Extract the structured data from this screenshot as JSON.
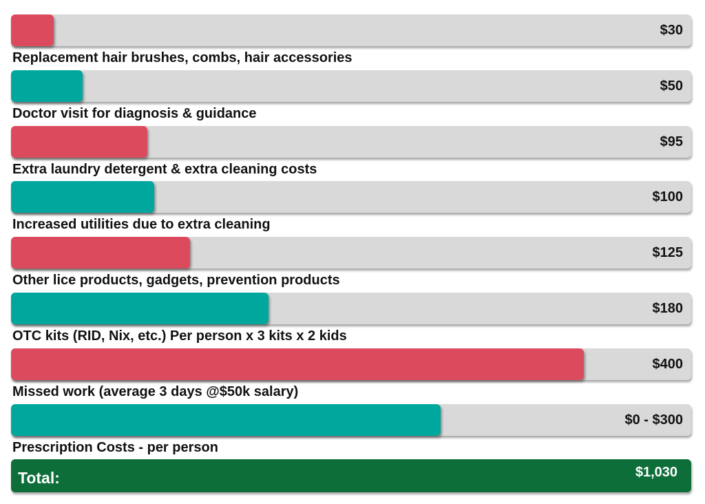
{
  "colors": {
    "track": "#d9d9d9",
    "series_a": "#dc4a5e",
    "series_b": "#00a79d",
    "total": "#0d6e3a"
  },
  "chart_data": {
    "type": "bar",
    "orientation": "horizontal",
    "items": [
      {
        "label": "Replacement hair brushes, combs, hair accessories",
        "value_text": "$30",
        "value": 30,
        "color": "#dc4a5e"
      },
      {
        "label": "Doctor visit for diagnosis & guidance",
        "value_text": "$50",
        "value": 50,
        "color": "#00a79d"
      },
      {
        "label": "Extra laundry detergent & extra cleaning costs",
        "value_text": "$95",
        "value": 95,
        "color": "#dc4a5e"
      },
      {
        "label": "Increased utilities due to extra cleaning",
        "value_text": "$100",
        "value": 100,
        "color": "#00a79d"
      },
      {
        "label": "Other lice products, gadgets, prevention products",
        "value_text": "$125",
        "value": 125,
        "color": "#dc4a5e"
      },
      {
        "label": "OTC kits (RID, Nix, etc.)  Per person x 3 kits x 2 kids",
        "value_text": "$180",
        "value": 180,
        "color": "#00a79d"
      },
      {
        "label": "Missed work (average 3 days @$50k salary)",
        "value_text": "$400",
        "value": 400,
        "color": "#dc4a5e"
      },
      {
        "label": "Prescription Costs - per person",
        "value_text": "$0 - $300",
        "value": 300,
        "color": "#00a79d"
      }
    ],
    "total": {
      "label": "Total:",
      "value_text": "$1,030"
    },
    "xlim": [
      0,
      475
    ]
  }
}
